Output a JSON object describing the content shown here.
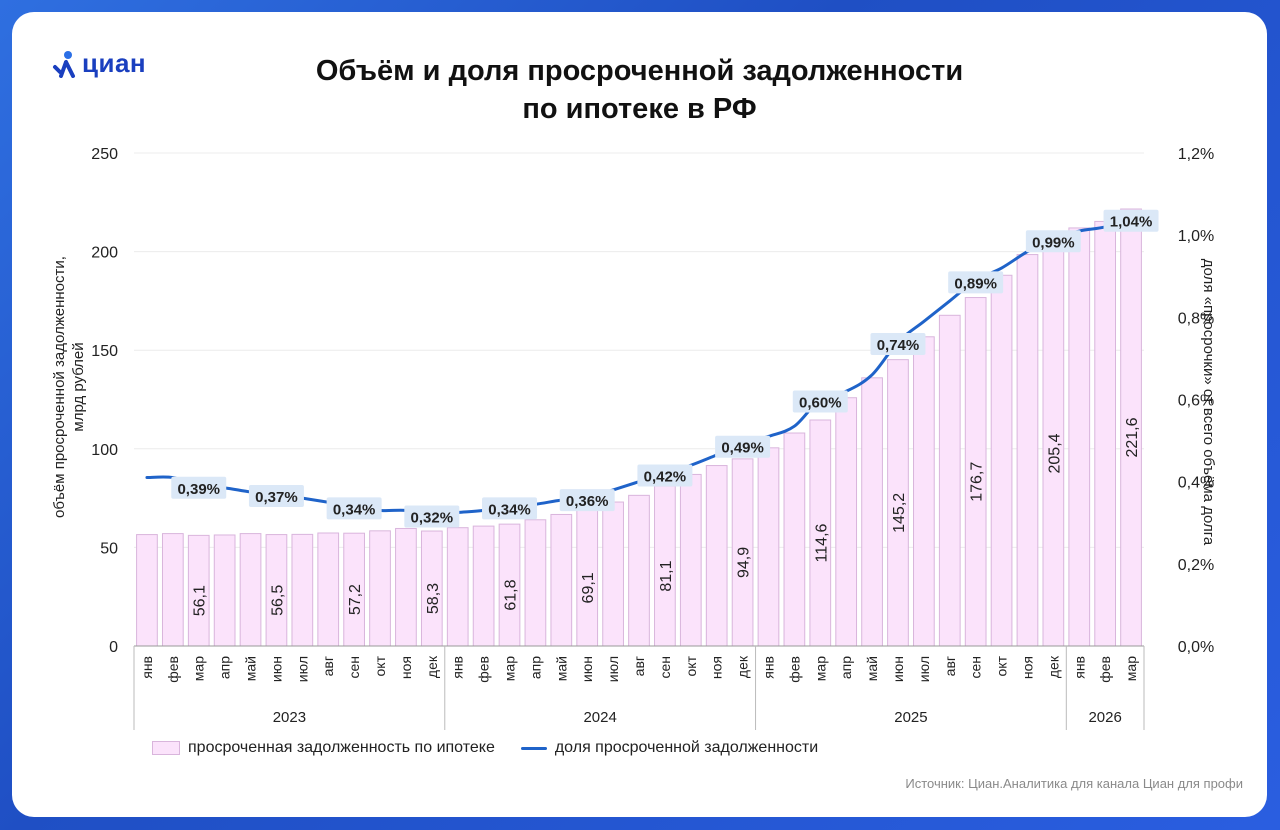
{
  "brand": {
    "logo_text": "циан"
  },
  "header": {
    "title_line1": "Объём и доля просроченной задолженности",
    "title_line2": "по ипотеке в РФ"
  },
  "source_text": "Источник: Циан.Аналитика для канала Циан для профи",
  "colors": {
    "bar_fill": "#fbe3fb",
    "bar_stroke": "#d9b5dc",
    "line": "#1f63c9",
    "label_bg": "#dbe8f7",
    "brand": "#1a3fbf"
  },
  "chart_data": {
    "type": "bar+line",
    "ylabel_left_line1": "объём просроченной задолженности,",
    "ylabel_left_line2": "млрд рублей",
    "ylabel_right": "доля «просрочки» от всего объёма долга",
    "ylim_left": [
      0,
      250
    ],
    "yticks_left": [
      "0",
      "50",
      "100",
      "150",
      "200",
      "250"
    ],
    "yticks_left_values": [
      0,
      50,
      100,
      150,
      200,
      250
    ],
    "ylim_right": [
      0,
      1.2
    ],
    "yticks_right": [
      "0,0%",
      "0,2%",
      "0,4%",
      "0,6%",
      "0,8%",
      "1,0%",
      "1,2%"
    ],
    "yticks_right_values": [
      0,
      0.2,
      0.4,
      0.6,
      0.8,
      1.0,
      1.2
    ],
    "categories": [
      "янв",
      "фев",
      "мар",
      "апр",
      "май",
      "июн",
      "июл",
      "авг",
      "сен",
      "окт",
      "ноя",
      "дек",
      "янв",
      "фев",
      "мар",
      "апр",
      "май",
      "июн",
      "июл",
      "авг",
      "сен",
      "окт",
      "ноя",
      "дек",
      "янв",
      "фев",
      "мар",
      "апр",
      "май",
      "июн",
      "июл",
      "авг",
      "сен",
      "окт",
      "ноя",
      "дек",
      "янв",
      "фев",
      "мар"
    ],
    "years": [
      {
        "label": "2023",
        "count": 12
      },
      {
        "label": "2024",
        "count": 12
      },
      {
        "label": "2025",
        "count": 12
      },
      {
        "label": "2026",
        "count": 3
      }
    ],
    "series": [
      {
        "name": "просроченная задолженность по ипотеке",
        "type": "bar",
        "values": [
          56.5,
          57.0,
          56.1,
          56.3,
          57.0,
          56.5,
          56.6,
          57.3,
          57.2,
          58.4,
          59.6,
          58.3,
          60.0,
          60.8,
          61.8,
          64.0,
          66.7,
          69.1,
          73.0,
          76.4,
          81.1,
          87.0,
          91.5,
          94.9,
          100.5,
          108.0,
          114.6,
          125.9,
          136.0,
          145.2,
          156.8,
          167.7,
          176.7,
          188.0,
          198.5,
          205.4,
          212.0,
          215.3,
          221.6
        ],
        "labels": [
          "",
          "",
          "56,1",
          "",
          "",
          "56,5",
          "",
          "",
          "57,2",
          "",
          "",
          "58,3",
          "",
          "",
          "61,8",
          "",
          "",
          "69,1",
          "",
          "",
          "81,1",
          "",
          "",
          "94,9",
          "",
          "",
          "114,6",
          "",
          "",
          "145,2",
          "",
          "",
          "176,7",
          "",
          "",
          "205,4",
          "",
          "",
          "221,6"
        ]
      },
      {
        "name": "доля просроченной задолженности",
        "type": "line",
        "values": [
          0.41,
          0.41,
          0.39,
          0.385,
          0.375,
          0.37,
          0.36,
          0.35,
          0.34,
          0.33,
          0.33,
          0.32,
          0.325,
          0.33,
          0.34,
          0.345,
          0.355,
          0.36,
          0.38,
          0.4,
          0.42,
          0.44,
          0.465,
          0.49,
          0.51,
          0.535,
          0.6,
          0.62,
          0.66,
          0.74,
          0.79,
          0.84,
          0.89,
          0.92,
          0.96,
          0.99,
          1.01,
          1.02,
          1.04
        ],
        "labels": [
          "",
          "",
          "0,39%",
          "",
          "",
          "0,37%",
          "",
          "",
          "0,34%",
          "",
          "",
          "0,32%",
          "",
          "",
          "0,34%",
          "",
          "",
          "0,36%",
          "",
          "",
          "0,42%",
          "",
          "",
          "0,49%",
          "",
          "",
          "0,60%",
          "",
          "",
          "0,74%",
          "",
          "",
          "0,89%",
          "",
          "",
          "0,99%",
          "",
          "",
          "1,04%"
        ]
      }
    ]
  }
}
